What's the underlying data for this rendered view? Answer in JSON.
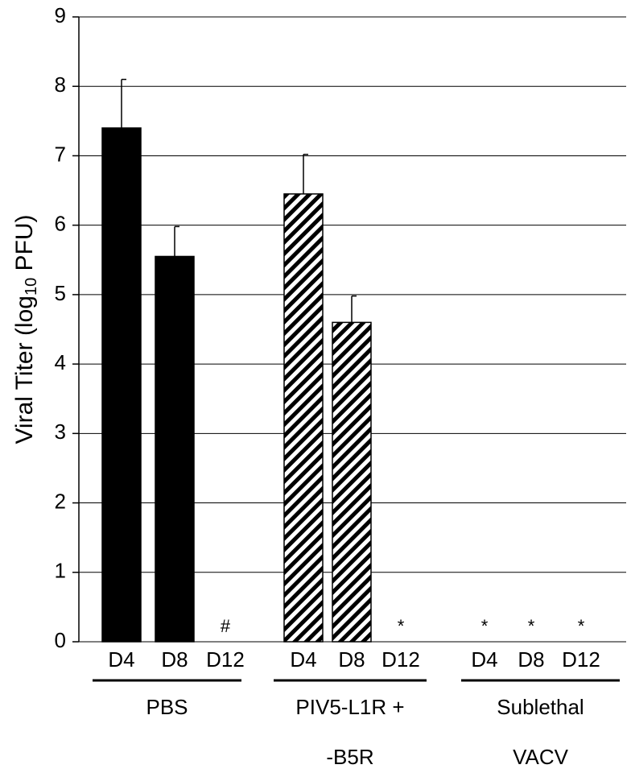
{
  "chart_data": {
    "type": "bar",
    "y_label_parts": [
      "Viral Titer (log",
      "10",
      " PFU)"
    ],
    "categories": [
      "D4",
      "D8",
      "D12"
    ],
    "series": [
      {
        "group": [
          "PBS"
        ],
        "pattern": "solid",
        "color": "#000000",
        "values": [
          7.4,
          5.55,
          0
        ],
        "errors": [
          0.7,
          0.43,
          0
        ],
        "annotations": [
          null,
          null,
          "#"
        ]
      },
      {
        "group": [
          "PIV5-L1R +",
          "-B5R"
        ],
        "pattern": "hatch",
        "color": "#000000",
        "values": [
          6.45,
          4.6,
          0
        ],
        "errors": [
          0.57,
          0.38,
          0
        ],
        "annotations": [
          null,
          null,
          "*"
        ]
      },
      {
        "group": [
          "Sublethal",
          "VACV"
        ],
        "pattern": "solid",
        "color": "#000000",
        "values": [
          0,
          0,
          0
        ],
        "errors": [
          0,
          0,
          0
        ],
        "annotations": [
          "*",
          "*",
          "*"
        ]
      }
    ],
    "ylim": [
      0,
      9
    ],
    "yticks": [
      0,
      1,
      2,
      3,
      4,
      5,
      6,
      7,
      8,
      9
    ],
    "grid": true
  }
}
